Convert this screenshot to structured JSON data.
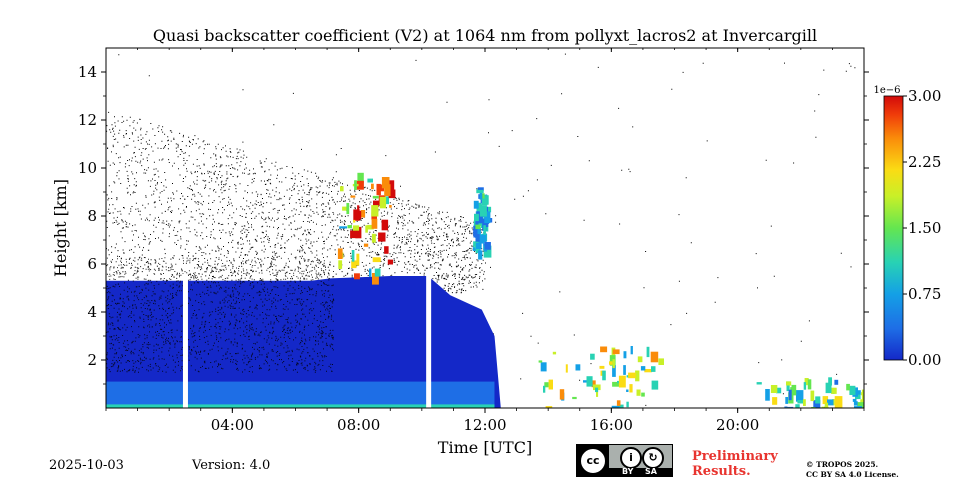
{
  "chart_data": {
    "type": "heatmap",
    "title": "Quasi backscatter coefficient (V2) at 1064 nm from pollyxt_lacros2 at Invercargill",
    "xlabel": "Time [UTC]",
    "ylabel": "Height [km]",
    "xlim_hours": [
      0,
      24
    ],
    "ylim_km": [
      0,
      15
    ],
    "x_ticks": [
      {
        "hour": 4,
        "label": "04:00"
      },
      {
        "hour": 8,
        "label": "08:00"
      },
      {
        "hour": 12,
        "label": "12:00"
      },
      {
        "hour": 16,
        "label": "16:00"
      },
      {
        "hour": 20,
        "label": "20:00"
      }
    ],
    "y_ticks": [
      {
        "km": 2,
        "label": "2"
      },
      {
        "km": 4,
        "label": "4"
      },
      {
        "km": 6,
        "label": "6"
      },
      {
        "km": 8,
        "label": "8"
      },
      {
        "km": 10,
        "label": "10"
      },
      {
        "km": 12,
        "label": "12"
      },
      {
        "km": 14,
        "label": "14"
      }
    ],
    "colorbar": {
      "min": 0.0,
      "max": 3.0,
      "exponent_label": "1e−6",
      "ticks": [
        {
          "value": 0.0,
          "label": "0.00"
        },
        {
          "value": 0.75,
          "label": "0.75"
        },
        {
          "value": 1.5,
          "label": "1.50"
        },
        {
          "value": 2.25,
          "label": "2.25"
        },
        {
          "value": 3.0,
          "label": "3.00"
        }
      ],
      "colors": [
        "#1428c8",
        "#1e6ee6",
        "#14a0e6",
        "#28d2b4",
        "#64e650",
        "#c8f028",
        "#fadc14",
        "#fa8c0a",
        "#f03c0a",
        "#d20a0a"
      ]
    },
    "layers": [
      {
        "name": "boundary-layer-aerosol",
        "t0": 0.0,
        "t1": 12.5,
        "z_top_km": 5.3,
        "value": 0.25
      },
      {
        "name": "mid-cloud",
        "t0": 7.3,
        "t1": 9.0,
        "z_bottom_km": 5.5,
        "z_top_km": 9.8,
        "value": 2.0
      },
      {
        "name": "cloud-1130",
        "t0": 11.6,
        "t1": 12.0,
        "z_bottom_km": 6.5,
        "z_top_km": 9.2,
        "value": 0.8
      },
      {
        "name": "low-clouds-afternoon",
        "t0": 13.5,
        "t1": 17.5,
        "z_top_km": 2.6,
        "value": 1.5
      },
      {
        "name": "low-clouds-evening",
        "t0": 20.6,
        "t1": 24.0,
        "z_top_km": 1.3,
        "value": 1.2
      }
    ],
    "data_gaps_hours": [
      2.5,
      10.2
    ]
  },
  "footer": {
    "date": "2025-10-03",
    "version": "Version: 4.0",
    "preliminary_line1": "Preliminary",
    "preliminary_line2": "Results.",
    "copyright_line1": "© TROPOS 2025.",
    "copyright_line2": "CC BY SA 4.0 License.",
    "badge_by": "BY",
    "badge_sa": "SA"
  }
}
